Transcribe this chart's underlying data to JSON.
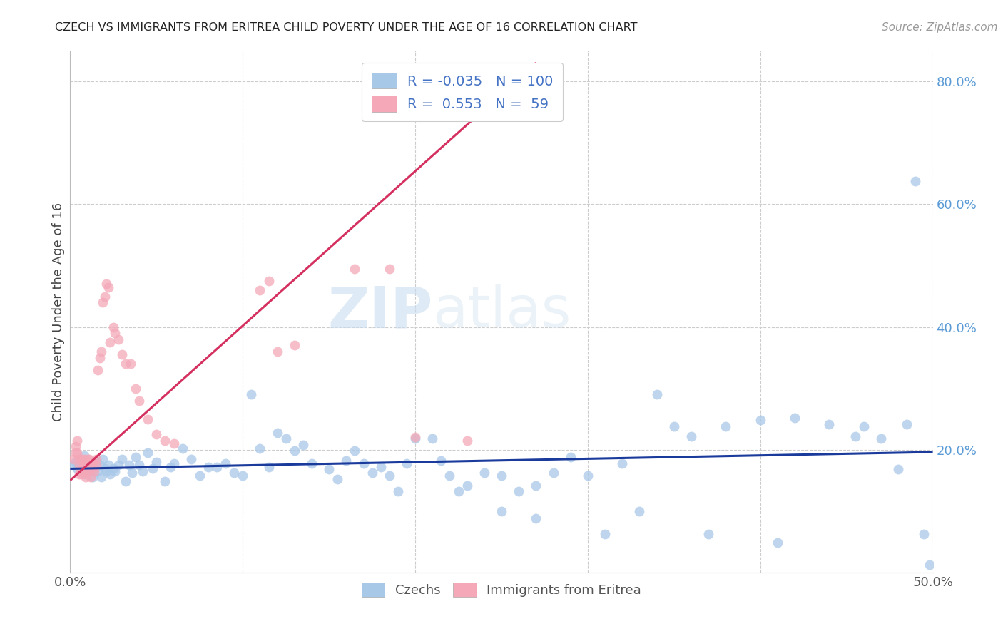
{
  "title": "CZECH VS IMMIGRANTS FROM ERITREA CHILD POVERTY UNDER THE AGE OF 16 CORRELATION CHART",
  "source": "Source: ZipAtlas.com",
  "ylabel": "Child Poverty Under the Age of 16",
  "xlim": [
    0.0,
    0.5
  ],
  "ylim": [
    0.0,
    0.85
  ],
  "czech_R": -0.035,
  "czech_N": 100,
  "eritrea_R": 0.553,
  "eritrea_N": 59,
  "czech_color": "#a8c8e8",
  "eritrea_color": "#f4a8b8",
  "czech_line_color": "#1a3a9c",
  "eritrea_line_color": "#d43060",
  "legend_label_czech": "Czechs",
  "legend_label_eritrea": "Immigrants from Eritrea",
  "watermark_zip": "ZIP",
  "watermark_atlas": "atlas",
  "czech_x": [
    0.002,
    0.003,
    0.004,
    0.005,
    0.006,
    0.007,
    0.008,
    0.008,
    0.009,
    0.01,
    0.011,
    0.012,
    0.013,
    0.014,
    0.015,
    0.016,
    0.017,
    0.018,
    0.019,
    0.02,
    0.021,
    0.022,
    0.023,
    0.025,
    0.026,
    0.028,
    0.03,
    0.032,
    0.034,
    0.036,
    0.038,
    0.04,
    0.042,
    0.045,
    0.048,
    0.05,
    0.055,
    0.058,
    0.06,
    0.065,
    0.07,
    0.075,
    0.08,
    0.085,
    0.09,
    0.095,
    0.1,
    0.105,
    0.11,
    0.115,
    0.12,
    0.125,
    0.13,
    0.135,
    0.14,
    0.15,
    0.155,
    0.16,
    0.165,
    0.17,
    0.175,
    0.18,
    0.185,
    0.19,
    0.195,
    0.2,
    0.21,
    0.215,
    0.22,
    0.225,
    0.23,
    0.24,
    0.25,
    0.26,
    0.27,
    0.28,
    0.29,
    0.3,
    0.32,
    0.34,
    0.35,
    0.36,
    0.38,
    0.4,
    0.42,
    0.44,
    0.455,
    0.46,
    0.47,
    0.48,
    0.485,
    0.49,
    0.495,
    0.498,
    0.25,
    0.27,
    0.31,
    0.33,
    0.37,
    0.41
  ],
  "czech_y": [
    0.175,
    0.18,
    0.17,
    0.185,
    0.175,
    0.165,
    0.175,
    0.19,
    0.16,
    0.175,
    0.165,
    0.175,
    0.155,
    0.17,
    0.18,
    0.165,
    0.175,
    0.155,
    0.185,
    0.17,
    0.165,
    0.175,
    0.16,
    0.17,
    0.165,
    0.175,
    0.185,
    0.148,
    0.175,
    0.162,
    0.188,
    0.175,
    0.165,
    0.195,
    0.17,
    0.18,
    0.148,
    0.172,
    0.178,
    0.202,
    0.185,
    0.158,
    0.172,
    0.172,
    0.178,
    0.162,
    0.158,
    0.29,
    0.202,
    0.172,
    0.228,
    0.218,
    0.198,
    0.208,
    0.178,
    0.168,
    0.152,
    0.182,
    0.198,
    0.178,
    0.162,
    0.172,
    0.158,
    0.132,
    0.178,
    0.218,
    0.218,
    0.182,
    0.158,
    0.132,
    0.142,
    0.162,
    0.158,
    0.132,
    0.142,
    0.162,
    0.188,
    0.158,
    0.178,
    0.29,
    0.238,
    0.222,
    0.238,
    0.248,
    0.252,
    0.242,
    0.222,
    0.238,
    0.218,
    0.168,
    0.242,
    0.638,
    0.062,
    0.012,
    0.1,
    0.088,
    0.062,
    0.1,
    0.062,
    0.048
  ],
  "eritrea_x": [
    0.002,
    0.003,
    0.003,
    0.004,
    0.004,
    0.005,
    0.005,
    0.005,
    0.006,
    0.006,
    0.007,
    0.007,
    0.007,
    0.008,
    0.008,
    0.008,
    0.009,
    0.009,
    0.01,
    0.01,
    0.01,
    0.011,
    0.011,
    0.012,
    0.012,
    0.013,
    0.013,
    0.014,
    0.015,
    0.015,
    0.016,
    0.017,
    0.018,
    0.019,
    0.02,
    0.021,
    0.022,
    0.023,
    0.025,
    0.026,
    0.028,
    0.03,
    0.032,
    0.035,
    0.038,
    0.04,
    0.045,
    0.05,
    0.055,
    0.06,
    0.11,
    0.115,
    0.12,
    0.13,
    0.165,
    0.185,
    0.19,
    0.2,
    0.23
  ],
  "eritrea_y": [
    0.185,
    0.205,
    0.195,
    0.215,
    0.195,
    0.16,
    0.175,
    0.185,
    0.165,
    0.185,
    0.16,
    0.17,
    0.185,
    0.165,
    0.175,
    0.185,
    0.155,
    0.17,
    0.175,
    0.185,
    0.165,
    0.175,
    0.185,
    0.155,
    0.175,
    0.17,
    0.18,
    0.165,
    0.175,
    0.185,
    0.33,
    0.35,
    0.36,
    0.44,
    0.45,
    0.47,
    0.465,
    0.375,
    0.4,
    0.39,
    0.38,
    0.355,
    0.34,
    0.34,
    0.3,
    0.28,
    0.25,
    0.225,
    0.215,
    0.21,
    0.46,
    0.475,
    0.36,
    0.37,
    0.495,
    0.495,
    0.79,
    0.22,
    0.215
  ]
}
